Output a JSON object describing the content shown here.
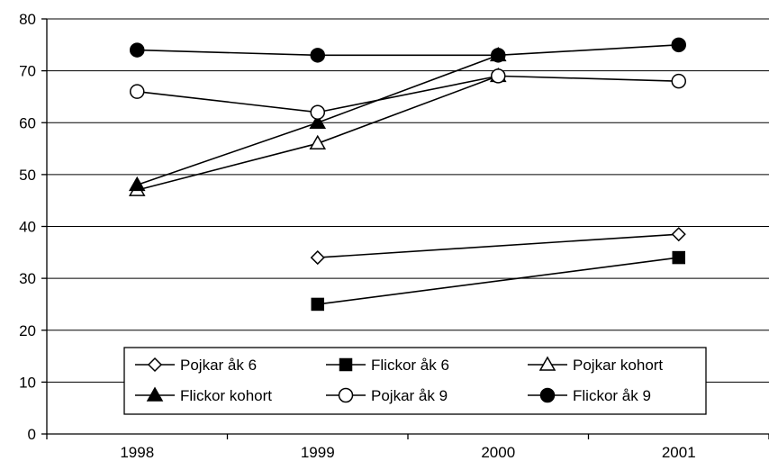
{
  "chart_data": {
    "type": "line",
    "categories": [
      "1998",
      "1999",
      "2000",
      "2001"
    ],
    "ylim": [
      0,
      80
    ],
    "yticks": [
      0,
      10,
      20,
      30,
      40,
      50,
      60,
      70,
      80
    ],
    "grid": true,
    "legend_position": "bottom",
    "series": [
      {
        "name": "Pojkar åk 6",
        "values": [
          null,
          34,
          null,
          38.5
        ],
        "marker": "diamond-open",
        "color": "#000000"
      },
      {
        "name": "Flickor åk 6",
        "values": [
          null,
          25,
          null,
          34
        ],
        "marker": "square-filled",
        "color": "#000000"
      },
      {
        "name": "Pojkar kohort",
        "values": [
          47,
          56,
          69,
          null
        ],
        "marker": "triangle-open",
        "color": "#000000"
      },
      {
        "name": "Flickor kohort",
        "values": [
          48,
          60,
          73,
          null
        ],
        "marker": "triangle-filled",
        "color": "#000000"
      },
      {
        "name": "Pojkar åk 9",
        "values": [
          66,
          62,
          69,
          68
        ],
        "marker": "circle-open",
        "color": "#000000"
      },
      {
        "name": "Flickor åk 9",
        "values": [
          74,
          73,
          73,
          75
        ],
        "marker": "circle-filled",
        "color": "#000000"
      }
    ]
  }
}
